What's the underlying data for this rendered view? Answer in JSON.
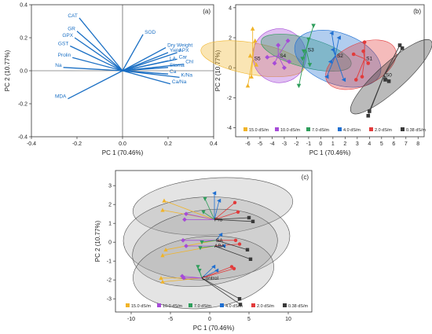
{
  "chart_data": [
    {
      "type": "scatter",
      "panel_label": "(a)",
      "xlabel": "PC 1 (70.46%)",
      "ylabel": "PC 2 (10.77%)",
      "xlim": [
        -0.4,
        0.4
      ],
      "ylim": [
        -0.4,
        0.4
      ],
      "x_ticks": [
        -0.4,
        -0.2,
        0.0,
        0.2,
        0.4
      ],
      "y_ticks": [
        -0.4,
        -0.2,
        0.0,
        0.2,
        0.4
      ],
      "x_tick_labels": [
        "-0.4",
        "-0.2",
        "0.0",
        "0.2",
        "0.4"
      ],
      "y_tick_labels": [
        "-0.4",
        "-0.2",
        "0.0",
        "0.2",
        "0.4"
      ],
      "vector_color": "#1a6fc4",
      "loadings": [
        {
          "name": "CAT",
          "x": -0.19,
          "y": 0.32
        },
        {
          "name": "GR",
          "x": -0.2,
          "y": 0.24
        },
        {
          "name": "GPX",
          "x": -0.21,
          "y": 0.2
        },
        {
          "name": "GST",
          "x": -0.23,
          "y": 0.15
        },
        {
          "name": "Prolin",
          "x": -0.22,
          "y": 0.08
        },
        {
          "name": "Na",
          "x": -0.26,
          "y": 0.02
        },
        {
          "name": "MDA",
          "x": -0.24,
          "y": -0.17
        },
        {
          "name": "SOD",
          "x": 0.09,
          "y": 0.22
        },
        {
          "name": "Dry Weight",
          "x": 0.19,
          "y": 0.14
        },
        {
          "name": "Yield",
          "x": 0.2,
          "y": 0.11
        },
        {
          "name": "APX",
          "x": 0.24,
          "y": 0.11
        },
        {
          "name": "Car",
          "x": 0.24,
          "y": 0.07
        },
        {
          "name": "LA",
          "x": 0.2,
          "y": 0.06
        },
        {
          "name": "Chl",
          "x": 0.27,
          "y": 0.04
        },
        {
          "name": "Stoma",
          "x": 0.2,
          "y": 0.02
        },
        {
          "name": "Ca",
          "x": 0.2,
          "y": -0.02
        },
        {
          "name": "K/Na",
          "x": 0.25,
          "y": -0.04
        },
        {
          "name": "Ca/Na",
          "x": 0.21,
          "y": -0.08
        }
      ]
    },
    {
      "type": "scatter",
      "panel_label": "(b)",
      "xlabel": "PC 1 (70.46%)",
      "ylabel": "PC 2 (10.77%)",
      "xlim": [
        -7,
        8.5
      ],
      "ylim": [
        -4.6,
        4.2
      ],
      "x_ticks": [
        -6,
        -5,
        -4,
        -3,
        -2,
        -1,
        0,
        1,
        2,
        3,
        4,
        5,
        6,
        7,
        8
      ],
      "y_ticks": [
        -4,
        -2,
        0,
        2,
        4
      ],
      "x_tick_labels": [
        "-6",
        "-5",
        "-4",
        "-3",
        "-2",
        "-1",
        "0",
        "1",
        "2",
        "3",
        "4",
        "5",
        "6",
        "7",
        "8"
      ],
      "y_tick_labels": [
        "-4",
        "-2",
        "0",
        "2",
        "4"
      ],
      "legend_position": "bottom",
      "series": [
        {
          "name": "15.0 dS/m",
          "label": "S5",
          "color": "#f0b429",
          "marker": "triangle",
          "ellipse": {
            "cx": -5.6,
            "cy": 0.6,
            "rx": 1.3,
            "ry": 3.5,
            "angle": -80
          },
          "centroid": [
            -5.6,
            0.6
          ],
          "points": [
            [
              -5.6,
              2.6
            ],
            [
              -5.4,
              1.8
            ],
            [
              -5.8,
              0.8
            ],
            [
              -5.3,
              0.2
            ],
            [
              -6.0,
              -1.2
            ],
            [
              -5.7,
              -0.6
            ]
          ]
        },
        {
          "name": "10.0 dS/m",
          "label": "S4",
          "color": "#a64bd8",
          "marker": "diamond",
          "ellipse": {
            "cx": -3.4,
            "cy": 0.8,
            "rx": 2.2,
            "ry": 1.8,
            "angle": -15
          },
          "centroid": [
            -3.5,
            0.8
          ],
          "points": [
            [
              -2.7,
              1.8
            ],
            [
              -3.5,
              1.5
            ],
            [
              -4.4,
              0.7
            ],
            [
              -3.0,
              0.0
            ],
            [
              -2.6,
              0.4
            ],
            [
              -3.8,
              0.3
            ]
          ]
        },
        {
          "name": "7.0 dS/m",
          "label": "S3",
          "color": "#2e9e5b",
          "marker": "triangle-down",
          "ellipse": {
            "cx": -1.2,
            "cy": 1.0,
            "rx": 1.2,
            "ry": 3.1,
            "angle": -75
          },
          "centroid": [
            -1.2,
            1.2
          ],
          "points": [
            [
              -0.6,
              2.8
            ],
            [
              -1.0,
              1.9
            ],
            [
              -1.4,
              1.1
            ],
            [
              -1.8,
              -1.2
            ],
            [
              -0.9,
              0.2
            ],
            [
              -1.5,
              0.6
            ]
          ]
        },
        {
          "name": "4.0 dS/m",
          "label": "S2",
          "color": "#1f6fd1",
          "marker": "triangle-left",
          "ellipse": {
            "cx": 1.4,
            "cy": 0.6,
            "rx": 2.1,
            "ry": 3.0,
            "angle": -70
          },
          "centroid": [
            1.2,
            0.8
          ],
          "points": [
            [
              0.9,
              2.3
            ],
            [
              1.5,
              2.0
            ],
            [
              1.0,
              1.2
            ],
            [
              0.5,
              -0.6
            ],
            [
              1.9,
              -0.8
            ],
            [
              0.8,
              0.4
            ]
          ]
        },
        {
          "name": "2.0 dS/m",
          "label": "S1",
          "color": "#e23b3b",
          "marker": "circle",
          "ellipse": {
            "cx": 3.3,
            "cy": 0.2,
            "rx": 3.1,
            "ry": 1.4,
            "angle": -25
          },
          "centroid": [
            3.6,
            0.6
          ],
          "points": [
            [
              3.6,
              1.7
            ],
            [
              3.5,
              1.1
            ],
            [
              2.7,
              0.9
            ],
            [
              2.9,
              -0.8
            ],
            [
              3.4,
              -0.6
            ],
            [
              3.9,
              0.3
            ]
          ]
        },
        {
          "name": "0.38 dS/m",
          "label": "S0",
          "color": "#3a3a3a",
          "marker": "square",
          "ellipse": {
            "cx": 5.8,
            "cy": -0.6,
            "rx": 4.4,
            "ry": 0.9,
            "angle": -42
          },
          "centroid": [
            5.2,
            -0.5
          ],
          "points": [
            [
              6.5,
              1.5
            ],
            [
              6.7,
              1.3
            ],
            [
              5.3,
              -0.8
            ],
            [
              5.6,
              -0.9
            ],
            [
              4.0,
              -2.9
            ],
            [
              3.9,
              -3.2
            ]
          ]
        }
      ]
    },
    {
      "type": "scatter",
      "panel_label": "(c)",
      "xlabel": "PC 1 (70.46%)",
      "ylabel": "PC 2 (10.77%)",
      "xlim": [
        -12,
        13
      ],
      "ylim": [
        -3.7,
        3.8
      ],
      "x_ticks": [
        -10,
        -5,
        0,
        5,
        10
      ],
      "y_ticks": [
        -3,
        -2,
        -1,
        0,
        1,
        2,
        3
      ],
      "x_tick_labels": [
        "-10",
        "-5",
        "0",
        "5",
        "10"
      ],
      "y_tick_labels": [
        "-3",
        "-2",
        "-1",
        "0",
        "1",
        "2",
        "3"
      ],
      "legend_position": "bottom",
      "groups": [
        {
          "label": "Pro",
          "centroid": [
            0.6,
            1.2
          ],
          "ellipse": {
            "cx": 0.4,
            "cy": 1.9,
            "rx": 10.2,
            "ry": 1.5,
            "angle": -4
          }
        },
        {
          "label": "SA",
          "centroid": [
            0.8,
            0.1
          ],
          "ellipse": {
            "cx": -0.4,
            "cy": 0.2,
            "rx": 10.6,
            "ry": 2.2,
            "angle": -2
          }
        },
        {
          "label": "ABA",
          "centroid": [
            0.6,
            -0.2
          ],
          "ellipse": {
            "cx": -0.6,
            "cy": -0.3,
            "rx": 9.3,
            "ry": 2.0,
            "angle": -8
          }
        },
        {
          "label": "Control",
          "centroid": [
            -1.0,
            -1.9
          ],
          "ellipse": {
            "cx": -0.8,
            "cy": -1.6,
            "rx": 9.0,
            "ry": 1.9,
            "angle": -6
          }
        }
      ],
      "series": [
        {
          "name": "15.0 dS/m",
          "color": "#f0b429",
          "marker": "triangle",
          "points": [
            [
              -5.8,
              2.2
            ],
            [
              -6.0,
              1.7
            ],
            [
              -5.6,
              -0.4
            ],
            [
              -6.0,
              -0.7
            ],
            [
              -6.2,
              -1.9
            ],
            [
              -6.0,
              -2.1
            ]
          ]
        },
        {
          "name": "10.0 dS/m",
          "color": "#a64bd8",
          "marker": "diamond",
          "points": [
            [
              -3.0,
              1.5
            ],
            [
              -3.2,
              1.2
            ],
            [
              -3.4,
              0.1
            ],
            [
              -3.0,
              -0.2
            ],
            [
              -3.5,
              -1.8
            ],
            [
              -3.3,
              -1.9
            ]
          ]
        },
        {
          "name": "7.0 dS/m",
          "color": "#2e9e5b",
          "marker": "triangle-down",
          "points": [
            [
              -0.6,
              2.3
            ],
            [
              -0.8,
              1.6
            ],
            [
              -1.0,
              0.0
            ],
            [
              -1.2,
              -0.3
            ],
            [
              -1.5,
              -1.3
            ],
            [
              -1.3,
              -1.5
            ]
          ]
        },
        {
          "name": "4.0 dS/m",
          "color": "#1f6fd1",
          "marker": "triangle-left",
          "points": [
            [
              0.6,
              2.6
            ],
            [
              1.2,
              2.2
            ],
            [
              1.4,
              0.4
            ],
            [
              1.8,
              -0.2
            ],
            [
              0.5,
              -1.3
            ],
            [
              0.9,
              -1.5
            ]
          ]
        },
        {
          "name": "2.0 dS/m",
          "color": "#e23b3b",
          "marker": "circle",
          "points": [
            [
              3.2,
              2.1
            ],
            [
              3.6,
              1.6
            ],
            [
              3.3,
              0.1
            ],
            [
              3.8,
              -0.1
            ],
            [
              2.8,
              -1.3
            ],
            [
              3.1,
              -1.4
            ]
          ]
        },
        {
          "name": "0.38 dS/m",
          "color": "#3a3a3a",
          "marker": "square",
          "points": [
            [
              5.0,
              1.3
            ],
            [
              5.5,
              1.1
            ],
            [
              4.8,
              -0.4
            ],
            [
              5.2,
              -0.9
            ],
            [
              3.8,
              -3.0
            ],
            [
              3.9,
              -3.3
            ]
          ]
        }
      ]
    }
  ]
}
